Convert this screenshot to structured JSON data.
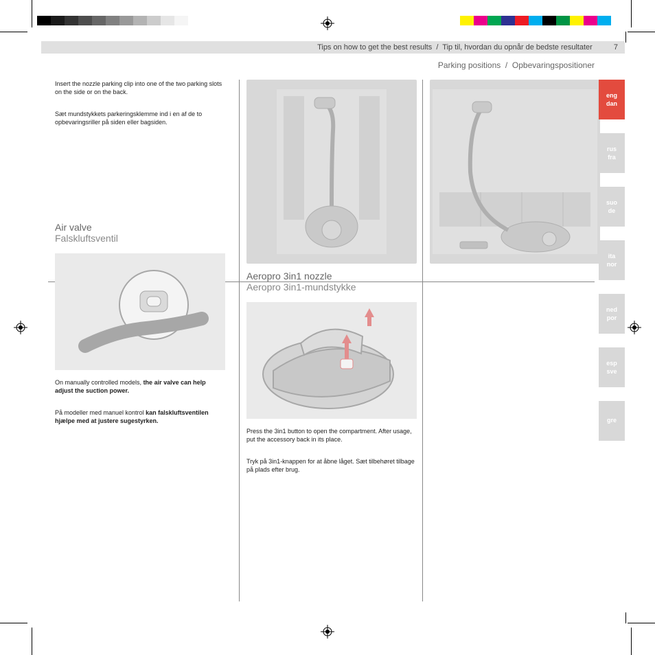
{
  "header": {
    "title_en": "Tips on how to get the best results",
    "title_da": "Tip til, hvordan du opnår de bedste resultater",
    "page_number": "7",
    "subtitle_en": "Parking positions",
    "subtitle_da": "Opbevaringspositioner"
  },
  "col1": {
    "text1_en": "Insert the nozzle parking clip into one of the two parking slots on the side or on the back.",
    "text1_da": "Sæt mundstykkets parkeringsklemme ind i en af de to opbevaringsriller på siden eller bagsiden.",
    "section_en": "Air valve",
    "section_da": "Falskluftsventil",
    "text2_en_pre": "On manually controlled models, ",
    "text2_en_bold": "the air valve can help adjust the suction power.",
    "text2_da_pre": "På modeller med manuel kontrol ",
    "text2_da_bold": "kan falskluftsventilen hjælpe med at justere sugestyrken."
  },
  "col2": {
    "section_en": "Aeropro 3in1 nozzle",
    "section_da": "Aeropro 3in1-mundstykke",
    "text_en": "Press the 3in1 button to open the compartment. After usage, put the accessory back in its place.",
    "text_da": "Tryk på 3in1-knappen for at åbne låget. Sæt tilbehøret tilbage på plads efter brug."
  },
  "tabs": [
    {
      "langs": [
        "eng",
        "dan"
      ],
      "active": true
    },
    {
      "langs": [
        "rus",
        "fra"
      ],
      "active": false
    },
    {
      "langs": [
        "suo",
        "de"
      ],
      "active": false
    },
    {
      "langs": [
        "ita",
        "nor"
      ],
      "active": false
    },
    {
      "langs": [
        "ned",
        "por"
      ],
      "active": false
    },
    {
      "langs": [
        "esp",
        "sve"
      ],
      "active": false
    },
    {
      "langs": [
        "gre",
        ""
      ],
      "active": false
    }
  ],
  "colorbar_left": [
    "#000000",
    "#1a1a1a",
    "#333333",
    "#4d4d4d",
    "#666666",
    "#808080",
    "#999999",
    "#b3b3b3",
    "#cccccc",
    "#e6e6e6",
    "#f5f5f5",
    "#ffffff"
  ],
  "colorbar_right": [
    "#fff200",
    "#ec008c",
    "#00a651",
    "#2e3192",
    "#ed1c24",
    "#00aeef",
    "#000000",
    "#009444",
    "#fff200",
    "#ec008c",
    "#00aeef",
    "#ffffff"
  ]
}
